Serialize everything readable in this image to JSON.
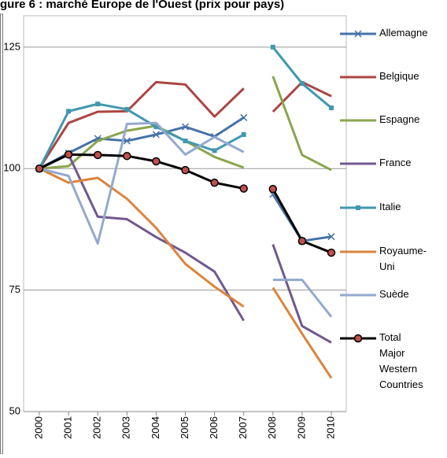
{
  "chart_data": {
    "type": "line",
    "title": "gure 6 : marché Europe de l'Ouest (prix pour pays)",
    "categories": [
      "2000",
      "2001",
      "2002",
      "2003",
      "2004",
      "2005",
      "2006",
      "2007",
      "2008",
      "2009",
      "2010"
    ],
    "gap_after": "2007",
    "ylim": [
      50,
      130
    ],
    "yticks": [
      50,
      75,
      100,
      125
    ],
    "grid": true,
    "legend": "right",
    "series": [
      {
        "name": "Allemagne",
        "color": "#4572a7",
        "marker": "x",
        "values": [
          100,
          103.2,
          106.2,
          105.7,
          107,
          108.6,
          106.6,
          110.5,
          94.7,
          85.1,
          86
        ]
      },
      {
        "name": "Belgique",
        "color": "#aa4643",
        "values": [
          100,
          109.4,
          111.7,
          111.8,
          117.8,
          117.3,
          110.7,
          116.5,
          111.7,
          117.8,
          114.9
        ]
      },
      {
        "name": "Espagne",
        "color": "#89a54e",
        "values": [
          100,
          100.5,
          105.7,
          107.8,
          108.8,
          105.7,
          102.4,
          100.2,
          119,
          102.8,
          99.7
        ]
      },
      {
        "name": "France",
        "color": "#71588f",
        "values": [
          100,
          102.9,
          90.1,
          89.6,
          85.9,
          82.7,
          78.8,
          68.7,
          84.4,
          67.6,
          64.2
        ]
      },
      {
        "name": "Italie",
        "color": "#4198af",
        "marker": "square",
        "values": [
          100,
          111.8,
          113.3,
          112.2,
          108.6,
          105.7,
          103.7,
          107,
          125,
          117.5,
          112.5
        ]
      },
      {
        "name": "Royaume-Uni",
        "color": "#db843d",
        "values": [
          100,
          97.1,
          98.1,
          93.8,
          87.8,
          80.4,
          75.7,
          71.6,
          75.5,
          66,
          56.9
        ]
      },
      {
        "name": "Suède",
        "color": "#93a9cf",
        "values": [
          100,
          98.5,
          84.6,
          109.2,
          109.4,
          102.9,
          106.5,
          103.4,
          77.1,
          77.1,
          69.5
        ]
      },
      {
        "name": "Total Major Western Countries",
        "color": "#000000",
        "marker": "circle",
        "values": [
          100,
          102.9,
          102.8,
          102.6,
          101.5,
          99.7,
          97.1,
          95.9,
          95.8,
          85.1,
          82.7
        ]
      }
    ]
  }
}
